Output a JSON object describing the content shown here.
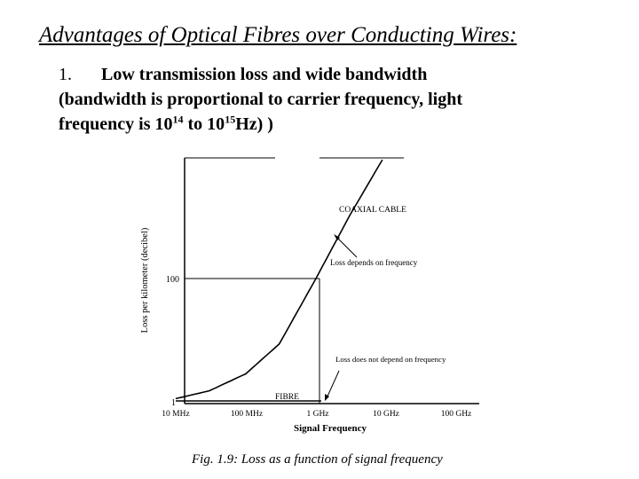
{
  "slide": {
    "title": "Advantages of Optical Fibres over Conducting Wires:",
    "point": {
      "number": "1.",
      "line1": "Low transmission loss and wide bandwidth",
      "line2": "(bandwidth is proportional to carrier frequency, light",
      "line3_a": "frequency is 10",
      "exp1": "14",
      "line3_b": " to 10",
      "exp2": "15",
      "line3_c": "Hz) )"
    },
    "caption": "Fig. 1.9: Loss as a function of signal frequency"
  },
  "chart_data": {
    "type": "line",
    "xlabel": "Signal Frequency",
    "ylabel": "Loss per kilometer (decibel)",
    "x_ticks": [
      "10 MHz",
      "100 MHz",
      "1 GHz",
      "10 GHz",
      "100 GHz"
    ],
    "y_ticks": [
      "1",
      "100"
    ],
    "series": [
      {
        "name": "COAXIAL CABLE",
        "x": [
          10,
          30,
          100,
          300,
          1000,
          3000,
          10000
        ],
        "y": [
          1.2,
          1.6,
          3,
          9,
          100,
          1000,
          10000
        ]
      },
      {
        "name": "FIBRE",
        "x": [
          10,
          100000
        ],
        "y": [
          1,
          1
        ]
      }
    ],
    "annotations": [
      {
        "text": "Loss depends on frequency",
        "target": "COAXIAL CABLE"
      },
      {
        "text": "Loss does not depend on frequency",
        "target": "FIBRE"
      }
    ]
  }
}
